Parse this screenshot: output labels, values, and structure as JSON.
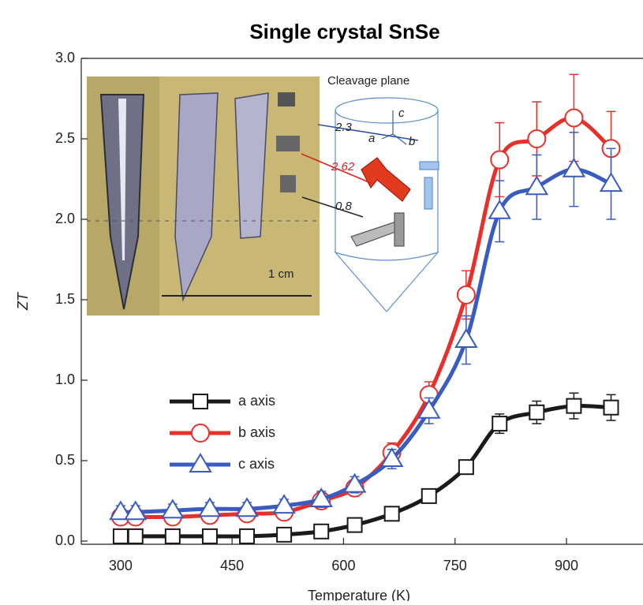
{
  "chart_data": {
    "type": "line",
    "title": "Single crystal SnSe",
    "xlabel": "Temperature (K)",
    "ylabel": "ZT",
    "x": [
      300,
      320,
      370,
      420,
      470,
      520,
      570,
      615,
      665,
      715,
      765,
      810,
      860,
      910,
      960
    ],
    "series": [
      {
        "name": "a axis",
        "color": "#1a1a1a",
        "marker": "square",
        "values": [
          0.03,
          0.03,
          0.03,
          0.03,
          0.03,
          0.04,
          0.06,
          0.1,
          0.17,
          0.28,
          0.46,
          0.73,
          0.8,
          0.84,
          0.83
        ],
        "errors": [
          0.02,
          0.02,
          0.02,
          0.02,
          0.02,
          0.02,
          0.02,
          0.03,
          0.03,
          0.04,
          0.04,
          0.06,
          0.07,
          0.08,
          0.08
        ]
      },
      {
        "name": "b axis",
        "color": "#e8302a",
        "marker": "circle",
        "values": [
          0.15,
          0.15,
          0.15,
          0.16,
          0.17,
          0.18,
          0.25,
          0.33,
          0.55,
          0.91,
          1.53,
          2.37,
          2.5,
          2.63,
          2.44
        ],
        "errors": [
          0.04,
          0.04,
          0.04,
          0.04,
          0.04,
          0.04,
          0.05,
          0.05,
          0.06,
          0.08,
          0.15,
          0.23,
          0.23,
          0.27,
          0.23
        ]
      },
      {
        "name": "c axis",
        "color": "#3a5bbf",
        "marker": "triangle",
        "values": [
          0.18,
          0.18,
          0.19,
          0.2,
          0.2,
          0.22,
          0.26,
          0.35,
          0.51,
          0.81,
          1.25,
          2.05,
          2.2,
          2.31,
          2.22
        ],
        "errors": [
          0.04,
          0.04,
          0.04,
          0.04,
          0.04,
          0.04,
          0.05,
          0.05,
          0.06,
          0.08,
          0.15,
          0.19,
          0.2,
          0.23,
          0.22
        ]
      }
    ],
    "xlim": [
      247,
      1003
    ],
    "xticks": [
      300,
      450,
      600,
      750,
      900
    ],
    "ylim": [
      0,
      3
    ],
    "yticks": [
      {
        "value": 0,
        "label": "0.0"
      },
      {
        "value": 0.5,
        "label": "0.5"
      },
      {
        "value": 1,
        "label": "1.0"
      },
      {
        "value": 1.5,
        "label": "1.5"
      },
      {
        "value": 2,
        "label": "2.0"
      },
      {
        "value": 2.5,
        "label": "2.5"
      },
      {
        "value": 3,
        "label": "3.0"
      }
    ],
    "inset": {
      "cleavage": "Cleavage plane",
      "scale": "1 cm",
      "arrow_a": "2.3",
      "arrow_b": "2.62",
      "arrow_c": "0.8",
      "axis_a": "a",
      "axis_b": "b",
      "axis_c": "c"
    }
  }
}
